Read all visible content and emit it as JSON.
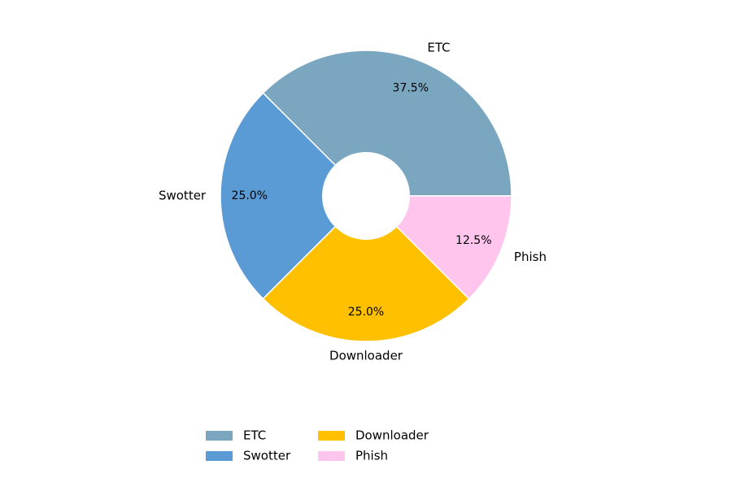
{
  "chart_data": {
    "type": "pie",
    "donut": true,
    "start_angle_deg": 0,
    "direction": "counterclockwise",
    "labels": [
      "ETC",
      "Swotter",
      "Downloader",
      "Phish"
    ],
    "values": [
      37.5,
      25.0,
      25.0,
      12.5
    ],
    "percent_labels": [
      "37.5%",
      "25.0%",
      "25.0%",
      "12.5%"
    ],
    "colors": [
      "#7ba6c0",
      "#5b9bd5",
      "#ffc000",
      "#ffc5ec"
    ],
    "edge_color": "#ffffff",
    "title": "",
    "legend": {
      "placement": "bottom-center",
      "columns": 3,
      "entries": [
        "ETC",
        "Swotter",
        "Downloader",
        "Phish"
      ]
    }
  }
}
